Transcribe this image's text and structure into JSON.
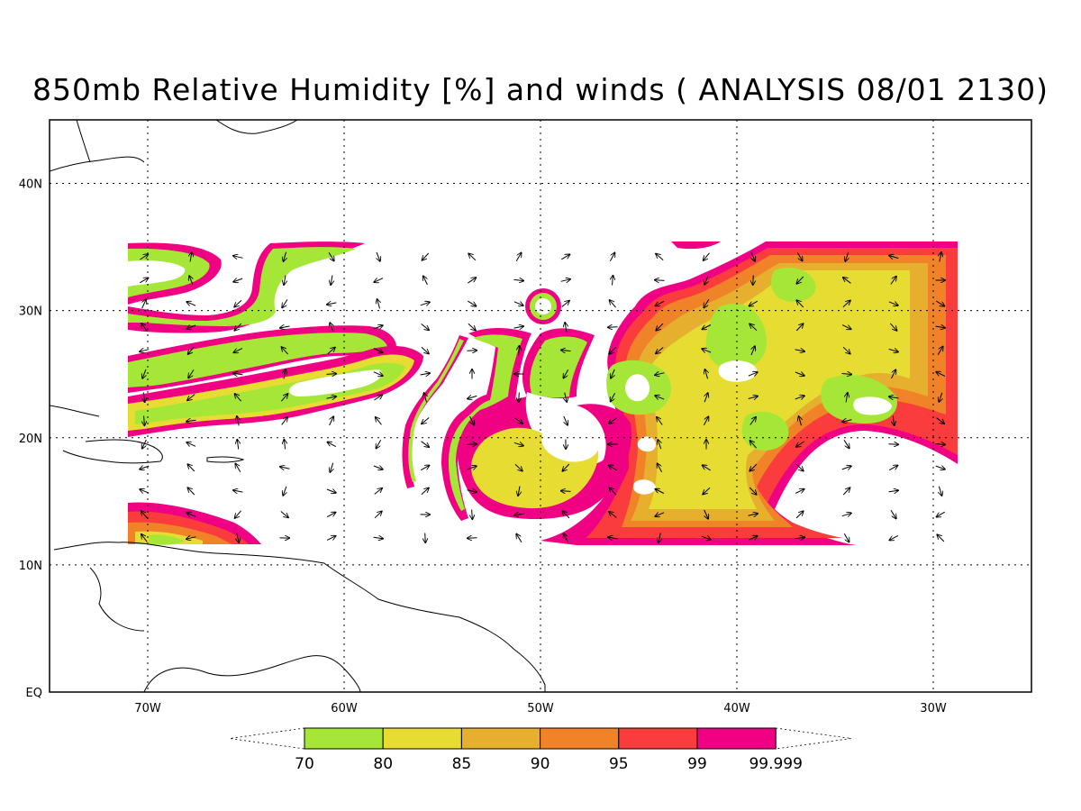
{
  "title": "850mb Relative Humidity [%] and winds ( ANALYSIS 08/01 2130)",
  "map": {
    "lon_range": [
      -75,
      -25
    ],
    "lat_range": [
      0,
      45
    ],
    "lon_ticks": [
      {
        "value": -70,
        "label": "70W"
      },
      {
        "value": -60,
        "label": "60W"
      },
      {
        "value": -50,
        "label": "50W"
      },
      {
        "value": -40,
        "label": "40W"
      },
      {
        "value": -30,
        "label": "30W"
      }
    ],
    "lat_ticks": [
      {
        "value": 0,
        "label": "EQ"
      },
      {
        "value": 10,
        "label": "10N"
      },
      {
        "value": 20,
        "label": "20N"
      },
      {
        "value": 30,
        "label": "30N"
      },
      {
        "value": 40,
        "label": "40N"
      }
    ],
    "gridlines": "dotted"
  },
  "colorbar": {
    "bins": [
      {
        "color": "#a6e636",
        "lower": "70"
      },
      {
        "color": "#e6dc32",
        "lower": "80"
      },
      {
        "color": "#e6af2d",
        "lower": "85"
      },
      {
        "color": "#f08228",
        "lower": "90"
      },
      {
        "color": "#fa3c3c",
        "lower": "95"
      },
      {
        "color": "#f00082",
        "lower": "99"
      }
    ],
    "top_label": "99.999"
  }
}
